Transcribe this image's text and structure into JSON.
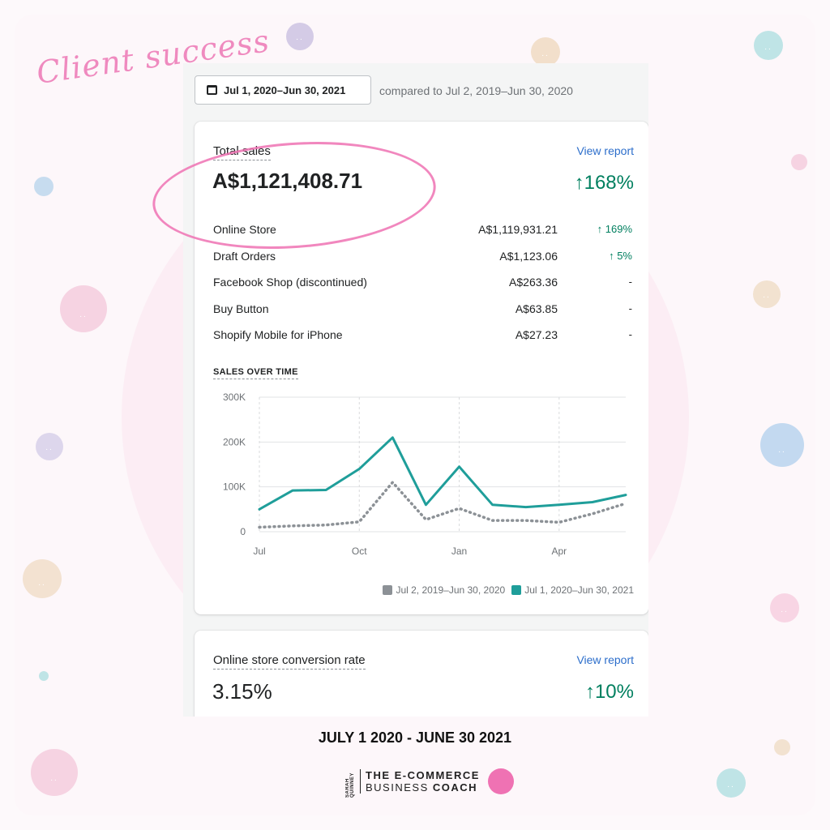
{
  "decor": {
    "script_title": "Client success"
  },
  "date_range": {
    "button_label": "Jul 1, 2020–Jun 30, 2021",
    "compared_text": "compared to Jul 2, 2019–Jun 30, 2020"
  },
  "total_sales": {
    "title": "Total sales",
    "view_report": "View report",
    "value": "A$1,121,408.71",
    "change": "168%",
    "rows": [
      {
        "label": "Online Store",
        "value": "A$1,119,931.21",
        "change": "169%",
        "up": true
      },
      {
        "label": "Draft Orders",
        "value": "A$1,123.06",
        "change": "5%",
        "up": true
      },
      {
        "label": "Facebook Shop (discontinued)",
        "value": "A$263.36",
        "change": "-",
        "up": false
      },
      {
        "label": "Buy Button",
        "value": "A$63.85",
        "change": "-",
        "up": false
      },
      {
        "label": "Shopify Mobile for iPhone",
        "value": "A$27.23",
        "change": "-",
        "up": false
      }
    ],
    "sales_over_time_label": "SALES OVER TIME"
  },
  "chart_data": {
    "type": "line",
    "x": [
      "Jul",
      "Aug",
      "Sep",
      "Oct",
      "Nov",
      "Dec",
      "Jan",
      "Feb",
      "Mar",
      "Apr",
      "May",
      "Jun"
    ],
    "xticks": [
      "Jul",
      "Oct",
      "Jan",
      "Apr"
    ],
    "yticks": [
      "0",
      "100K",
      "200K",
      "300K"
    ],
    "ylim": [
      0,
      300000
    ],
    "series": [
      {
        "name": "Jul 2, 2019–Jun 30, 2020",
        "color": "#8c9196",
        "style": "dotted",
        "values": [
          10000,
          13000,
          15000,
          22000,
          110000,
          27000,
          52000,
          25000,
          25000,
          21000,
          40000,
          63000
        ]
      },
      {
        "name": "Jul 1, 2020–Jun 30, 2021",
        "color": "#1f9e9a",
        "style": "solid",
        "values": [
          50000,
          92000,
          93000,
          140000,
          210000,
          60000,
          145000,
          60000,
          55000,
          60000,
          66000,
          82000
        ]
      }
    ],
    "grid": true,
    "legend_position": "bottom-right"
  },
  "conversion": {
    "title": "Online store conversion rate",
    "view_report": "View report",
    "value": "3.15%",
    "change": "10%"
  },
  "footer": {
    "date_text": "JULY 1 2020 - JUNE 30 2021",
    "logo_side": "SARAH QUINNEY",
    "logo_line1": "THE E-COMMERCE",
    "logo_line2a": "BUSINESS ",
    "logo_line2b": "COACH"
  }
}
